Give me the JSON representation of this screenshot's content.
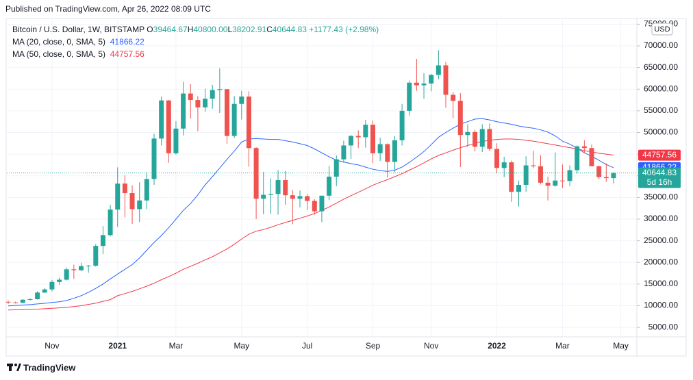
{
  "chart_data": {
    "type": "candlestick",
    "publisher": "Published on TradingView.com, Apr 26, 2022 08:09 UTC",
    "title": "Bitcoin / U.S. Dollar, 1W, BITSTAMP",
    "legend_values": [
      {
        "label": "O",
        "value": "39464.67"
      },
      {
        "label": "H",
        "value": "40800.00"
      },
      {
        "label": "L",
        "value": "38202.91"
      },
      {
        "label": "C",
        "value": "40644.83"
      }
    ],
    "change": "+1177.43 (+2.98%)",
    "categories": [
      null,
      null,
      null,
      null,
      null,
      null,
      "Nov",
      null,
      null,
      null,
      null,
      null,
      null,
      null,
      null,
      "2021",
      null,
      null,
      null,
      null,
      null,
      null,
      null,
      "Mar",
      null,
      null,
      null,
      null,
      null,
      null,
      null,
      null,
      "May",
      null,
      null,
      null,
      null,
      null,
      null,
      null,
      null,
      "Jul",
      null,
      null,
      null,
      null,
      null,
      null,
      null,
      null,
      "Sep",
      null,
      null,
      null,
      null,
      null,
      null,
      null,
      "Nov",
      null,
      null,
      null,
      null,
      null,
      null,
      null,
      null,
      "2022",
      null,
      null,
      null,
      null,
      null,
      null,
      null,
      null,
      "Mar",
      null,
      null,
      null,
      null,
      null,
      null,
      null,
      "May"
    ],
    "open": [
      10900,
      10740,
      10670,
      11380,
      11500,
      13030,
      13760,
      15480,
      16000,
      18400,
      18180,
      19150,
      19250,
      23800,
      26300,
      32200,
      38200,
      36000,
      32300,
      34300,
      39250,
      48600,
      57400,
      45200,
      50900,
      59000,
      57500,
      55800,
      57800,
      59800,
      60000,
      49200,
      56600,
      58300,
      46400,
      34700,
      35600,
      35800,
      39000,
      35500,
      34700,
      35300,
      34200,
      31800,
      35400,
      39800,
      43800,
      47000,
      49200,
      48900,
      51800,
      45200,
      47300,
      43200,
      48200,
      55000,
      61500,
      60900,
      61300,
      63300,
      65500,
      58700,
      57300,
      49400,
      50100,
      46700,
      50800,
      46200,
      41800,
      43100,
      36300,
      37900,
      42400,
      42200,
      38400,
      37700,
      38900,
      38800,
      41300,
      46800,
      46400,
      42200,
      39700,
      39464.67,
      null
    ],
    "high": [
      11180,
      10950,
      11490,
      11720,
      13350,
      14100,
      15960,
      16480,
      18800,
      19480,
      19900,
      19400,
      24200,
      28400,
      33300,
      41950,
      40100,
      37800,
      38500,
      40900,
      49700,
      58300,
      57500,
      52600,
      61700,
      61200,
      58400,
      60100,
      61000,
      64800,
      60000,
      58400,
      59600,
      59500,
      46600,
      40900,
      39400,
      41300,
      41100,
      36700,
      36600,
      35800,
      34600,
      35400,
      42300,
      44700,
      48100,
      49400,
      50500,
      52900,
      52800,
      48800,
      47500,
      49200,
      56600,
      62000,
      67000,
      63700,
      63500,
      69000,
      66300,
      59300,
      59100,
      51900,
      50600,
      51900,
      52100,
      47500,
      44400,
      43500,
      38900,
      44500,
      45800,
      44700,
      39800,
      45400,
      42600,
      42400,
      47000,
      48200,
      47200,
      42400,
      42900,
      40800,
      null
    ],
    "low": [
      10370,
      10520,
      10530,
      11200,
      11400,
      12900,
      13300,
      14850,
      15800,
      16200,
      18000,
      17600,
      19000,
      21900,
      26000,
      28200,
      30400,
      28900,
      29300,
      32300,
      37900,
      47000,
      43000,
      44900,
      49300,
      53200,
      50300,
      54800,
      55500,
      54500,
      47400,
      48700,
      53000,
      42100,
      30000,
      31100,
      31200,
      31000,
      33300,
      28800,
      32700,
      32100,
      31000,
      29300,
      34400,
      37600,
      43000,
      43900,
      46400,
      46500,
      42900,
      43400,
      39600,
      40800,
      47000,
      53900,
      59600,
      57800,
      59500,
      62300,
      55700,
      53300,
      42000,
      46700,
      45600,
      45500,
      45700,
      40600,
      39700,
      34000,
      32900,
      36300,
      41700,
      38000,
      34300,
      37500,
      37200,
      37600,
      40500,
      45200,
      42200,
      39200,
      38600,
      38202.91,
      null
    ],
    "close": [
      10740,
      10670,
      11380,
      11500,
      13030,
      13760,
      15480,
      16000,
      18400,
      18180,
      19150,
      19250,
      23800,
      26300,
      32200,
      38200,
      36000,
      32300,
      34300,
      39250,
      48600,
      57400,
      45200,
      50900,
      59000,
      57500,
      55800,
      57800,
      59800,
      60000,
      49200,
      56600,
      58300,
      46400,
      34700,
      35600,
      35800,
      39000,
      35500,
      34700,
      35300,
      34200,
      31800,
      35400,
      39800,
      43800,
      47000,
      49200,
      48900,
      51800,
      45200,
      47300,
      43200,
      48200,
      55000,
      61500,
      60900,
      61300,
      63300,
      65500,
      58700,
      57300,
      49400,
      50100,
      46700,
      50800,
      46200,
      41800,
      43100,
      36300,
      37900,
      42400,
      42200,
      38400,
      37700,
      38900,
      38800,
      41300,
      46800,
      46400,
      42200,
      39700,
      39467,
      40644.83,
      null
    ],
    "up_color": "#26a69a",
    "down_color": "#ef5350",
    "series": [
      {
        "name": "MA (20, close, 0, SMA, 5)",
        "color": "#2962ff",
        "values": [
          9950,
          10050,
          10150,
          10250,
          10400,
          10550,
          10750,
          10900,
          11200,
          11700,
          12300,
          13100,
          14000,
          15000,
          16200,
          17300,
          18400,
          19500,
          21000,
          22800,
          24600,
          26200,
          28000,
          30000,
          32000,
          33600,
          35600,
          37900,
          39800,
          41800,
          43800,
          45700,
          47800,
          48500,
          48600,
          48500,
          48400,
          48400,
          48100,
          47800,
          47400,
          47000,
          46200,
          45300,
          44400,
          43600,
          43200,
          42800,
          42500,
          42000,
          41500,
          41200,
          41000,
          41300,
          42000,
          43100,
          44300,
          45600,
          47200,
          48900,
          50000,
          51000,
          51900,
          52500,
          53100,
          53200,
          52900,
          52500,
          52200,
          51900,
          51500,
          51200,
          51000,
          50600,
          50100,
          49200,
          48000,
          47300,
          46400,
          45300,
          44500,
          43600,
          42600,
          41866.22,
          null
        ]
      },
      {
        "name": "MA (50, close, 0, SMA, 5)",
        "color": "#f23645",
        "values": [
          9000,
          9050,
          9100,
          9150,
          9200,
          9300,
          9400,
          9500,
          9600,
          9800,
          10000,
          10300,
          10600,
          11000,
          11400,
          12300,
          12800,
          13300,
          13900,
          14500,
          15200,
          16000,
          16700,
          17500,
          18400,
          19100,
          19800,
          20600,
          21300,
          22200,
          23100,
          24200,
          25400,
          26500,
          27200,
          27600,
          28100,
          28700,
          29200,
          29700,
          30200,
          30700,
          31300,
          32000,
          32800,
          33700,
          34600,
          35400,
          36200,
          37000,
          37800,
          38500,
          39100,
          39800,
          40500,
          41300,
          42100,
          43000,
          43900,
          44700,
          45300,
          45900,
          46500,
          47000,
          47500,
          47900,
          48200,
          48400,
          48500,
          48500,
          48400,
          48200,
          48000,
          47700,
          47400,
          47100,
          46800,
          46500,
          46200,
          45800,
          45500,
          45200,
          45000,
          44757.56,
          null
        ]
      }
    ],
    "ylim": [
      2800,
      75850
    ],
    "yticks": [
      {
        "value": 5000,
        "label": "5000.00"
      },
      {
        "value": 10000,
        "label": "10000.00"
      },
      {
        "value": 15000,
        "label": "15000.00"
      },
      {
        "value": 20000,
        "label": "20000.00"
      },
      {
        "value": 25000,
        "label": "25000.00"
      },
      {
        "value": 30000,
        "label": "30000.00"
      },
      {
        "value": 35000,
        "label": "35000.00"
      },
      {
        "value": 40000,
        "label": "40000.00"
      },
      {
        "value": 45000,
        "label": "45000.00"
      },
      {
        "value": 50000,
        "label": "50000.00"
      },
      {
        "value": 55000,
        "label": "55000.00"
      },
      {
        "value": 60000,
        "label": "60000.00"
      },
      {
        "value": 65000,
        "label": "65000.00"
      },
      {
        "value": 70000,
        "label": "70000.00"
      },
      {
        "value": 75000,
        "label": "75000.00"
      }
    ],
    "grid": true,
    "currency": "USD",
    "countdown": "5d 16h",
    "footer": "TradingView"
  }
}
